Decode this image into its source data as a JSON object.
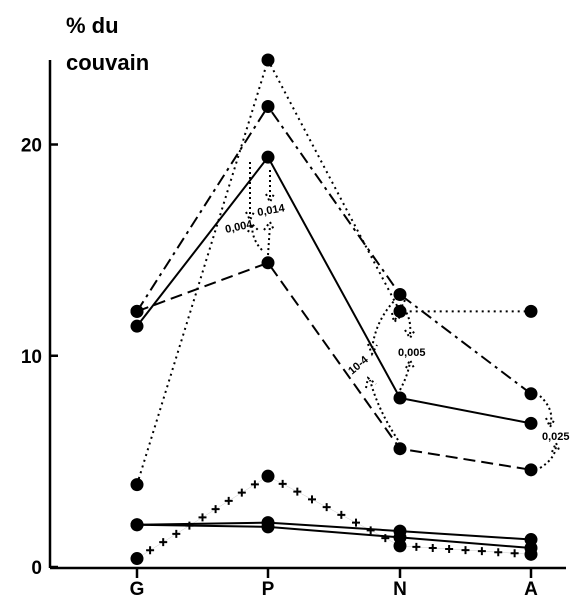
{
  "chart_data": {
    "type": "line",
    "ylabel": [
      "% du",
      "couvain"
    ],
    "categories": [
      "G",
      "P",
      "N",
      "A"
    ],
    "ylim": [
      0,
      24
    ],
    "yticks": [
      0,
      10,
      20
    ],
    "color": "#000000",
    "series": [
      {
        "linestyle": "solid",
        "values": [
          11.4,
          19.4,
          8.0,
          6.8
        ]
      },
      {
        "linestyle": "dashed",
        "values": [
          12.1,
          14.4,
          5.6,
          4.6
        ]
      },
      {
        "linestyle": "dashdot",
        "values": [
          12.1,
          21.8,
          12.9,
          8.2
        ]
      },
      {
        "linestyle": "dotted",
        "values": [
          3.9,
          24.0,
          12.1,
          12.1
        ]
      },
      {
        "linestyle": "solid",
        "values": [
          2.0,
          2.1,
          1.7,
          1.3
        ]
      },
      {
        "linestyle": "solid",
        "values": [
          2.0,
          1.9,
          1.4,
          0.9
        ]
      },
      {
        "linestyle": "cross",
        "values": [
          0.4,
          4.3,
          1.0,
          0.6
        ]
      }
    ],
    "annotations": [
      "0,004",
      "0,014",
      "10-4",
      "0,005",
      "0,025"
    ]
  }
}
